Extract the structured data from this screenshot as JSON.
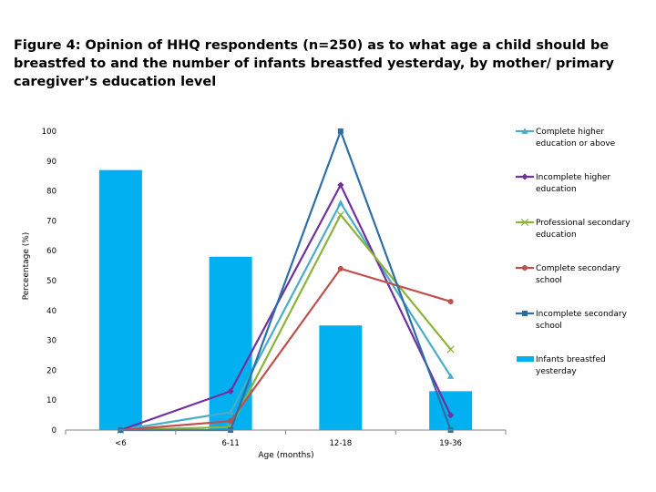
{
  "title": "Figure 4: Opinion of HHQ respondents (n=250) as to what age a child should be breastfed to and the number of infants breastfed yesterday, by mother/ primary caregiver’s education level",
  "chart_data": {
    "type": "bar",
    "categories": [
      "<6",
      "6-11",
      "12-18",
      "19-36"
    ],
    "xlabel": "Age (months)",
    "ylabel": "Perceentage (%)",
    "ylim": [
      0,
      100
    ],
    "yticks": [
      0,
      10,
      20,
      30,
      40,
      50,
      60,
      70,
      80,
      90,
      100
    ],
    "legend_position": "right",
    "bar_series": {
      "name": "Infants breastfed yesterday",
      "color": "#00b0f0",
      "values": [
        87,
        58,
        35,
        13
      ]
    },
    "line_series": [
      {
        "name": "Complete higher education or above",
        "color": "#4bacc6",
        "marker": "triangle",
        "values": [
          0,
          6,
          76,
          18
        ]
      },
      {
        "name": "Incomplete higher education",
        "color": "#7030a0",
        "marker": "diamond",
        "values": [
          0,
          13,
          82,
          5
        ]
      },
      {
        "name": "Professional secondary education",
        "color": "#8db33a",
        "marker": "x",
        "values": [
          0,
          1,
          72,
          27
        ]
      },
      {
        "name": "Complete secondary school",
        "color": "#c0504d",
        "marker": "circle",
        "values": [
          0,
          3,
          54,
          43
        ]
      },
      {
        "name": "Incomplete secondary school",
        "color": "#2e6ea6",
        "marker": "square",
        "values": [
          0,
          0,
          100,
          0
        ]
      }
    ]
  }
}
